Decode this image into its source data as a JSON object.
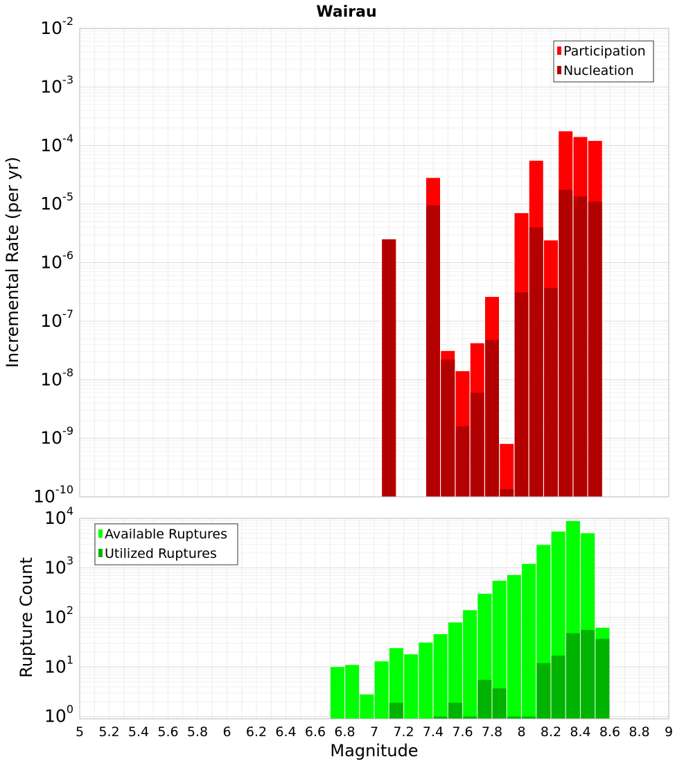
{
  "chart_data": [
    {
      "type": "bar",
      "title": "Wairau",
      "xlabel": "",
      "ylabel": "Incremental Rate (per yr)",
      "y_scale": "log",
      "ylim": [
        1e-10,
        0.01
      ],
      "y_ticks": [
        {
          "base": "10",
          "exp": "-10"
        },
        {
          "base": "10",
          "exp": "-9"
        },
        {
          "base": "10",
          "exp": "-8"
        },
        {
          "base": "10",
          "exp": "-7"
        },
        {
          "base": "10",
          "exp": "-6"
        },
        {
          "base": "10",
          "exp": "-5"
        },
        {
          "base": "10",
          "exp": "-4"
        },
        {
          "base": "10",
          "exp": "-3"
        },
        {
          "base": "10",
          "exp": "-2"
        }
      ],
      "xlim": [
        5,
        9
      ],
      "grid": true,
      "legend_position": "top-right",
      "x": [
        7.1,
        7.4,
        7.5,
        7.6,
        7.7,
        7.8,
        7.9,
        8.0,
        8.1,
        8.2,
        8.3,
        8.4,
        8.5
      ],
      "series": [
        {
          "name": "Participation",
          "color": "#ff0000",
          "values": [
            2.5e-06,
            2.8e-05,
            3.1e-08,
            1.4e-08,
            4.2e-08,
            2.6e-07,
            8e-10,
            7e-06,
            5.5e-05,
            2.4e-06,
            0.000175,
            0.00014,
            0.00012
          ]
        },
        {
          "name": "Nucleation",
          "color": "#b30000",
          "values": [
            2.5e-06,
            9.5e-06,
            2.2e-08,
            1.6e-09,
            6e-09,
            4.8e-08,
            1.35e-10,
            3.1e-07,
            4e-06,
            3.7e-07,
            1.75e-05,
            1.35e-05,
            1.1e-05
          ]
        }
      ]
    },
    {
      "type": "bar",
      "title": "",
      "xlabel": "Magnitude",
      "ylabel": "Rupture Count",
      "y_scale": "log",
      "ylim": [
        0.9,
        10000
      ],
      "y_ticks": [
        {
          "base": "10",
          "exp": "0"
        },
        {
          "base": "10",
          "exp": "1"
        },
        {
          "base": "10",
          "exp": "2"
        },
        {
          "base": "10",
          "exp": "3"
        },
        {
          "base": "10",
          "exp": "4"
        }
      ],
      "xlim": [
        5,
        9
      ],
      "x_ticks": [
        "5",
        "5.2",
        "5.4",
        "5.6",
        "5.8",
        "6",
        "6.2",
        "6.4",
        "6.6",
        "6.8",
        "7",
        "7.2",
        "7.4",
        "7.6",
        "7.8",
        "8",
        "8.2",
        "8.4",
        "8.6",
        "8.8",
        "9"
      ],
      "grid": true,
      "legend_position": "top-left",
      "x": [
        6.75,
        6.85,
        6.95,
        7.05,
        7.15,
        7.25,
        7.35,
        7.45,
        7.55,
        7.65,
        7.75,
        7.85,
        7.95,
        8.05,
        8.15,
        8.25,
        8.35,
        8.45,
        8.55
      ],
      "series": [
        {
          "name": "Available Ruptures",
          "color": "#00ff00",
          "values": [
            10,
            11,
            2.8,
            13,
            24,
            18,
            31,
            46,
            79,
            140,
            300,
            550,
            720,
            1200,
            2900,
            5400,
            8800,
            5000,
            62
          ]
        },
        {
          "name": "Utilized Ruptures",
          "color": "#00b300",
          "values": [
            0,
            0,
            0,
            0,
            1.9,
            0,
            0,
            1,
            1.9,
            1,
            5.5,
            3.7,
            1,
            1,
            12,
            17,
            48,
            56,
            37
          ]
        }
      ]
    }
  ]
}
